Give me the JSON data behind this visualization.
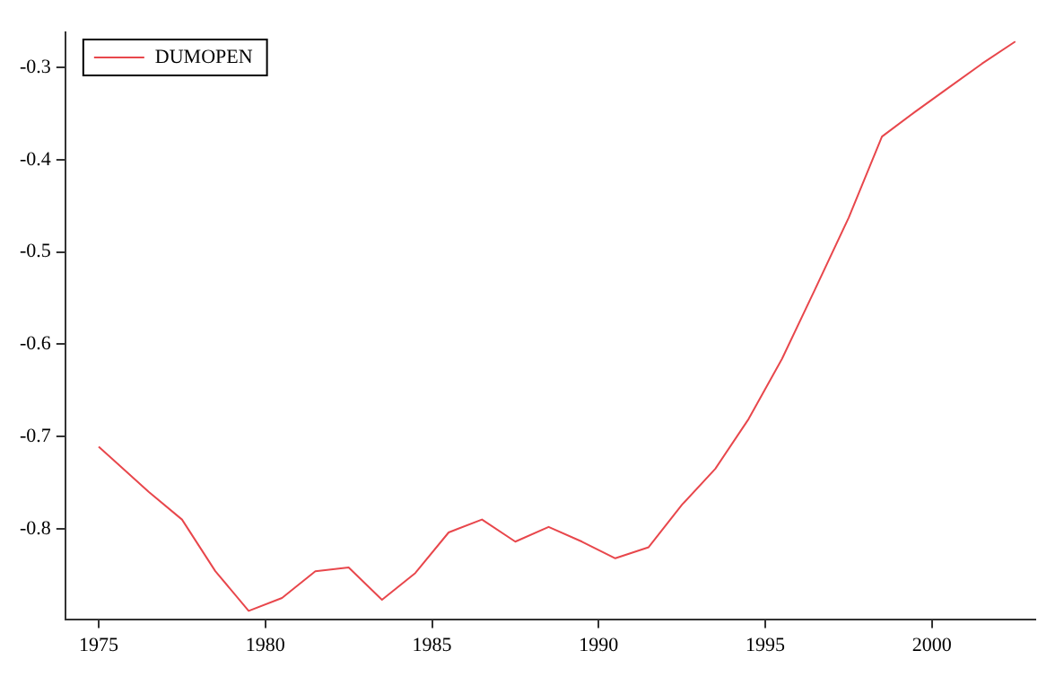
{
  "chart_data": {
    "type": "line",
    "x": [
      1975,
      1976.5,
      1977.5,
      1978.5,
      1979.5,
      1980.5,
      1981.5,
      1982.5,
      1983.5,
      1984.5,
      1985.5,
      1986.5,
      1987.5,
      1988.5,
      1989.5,
      1990.5,
      1991.5,
      1992.5,
      1993.5,
      1994.5,
      1995.5,
      1996.5,
      1997.5,
      1998.5,
      1999.5,
      2000.5,
      2001.5,
      2002.5
    ],
    "series": [
      {
        "name": "DUMOPEN",
        "color": "#e8474c",
        "values": [
          -0.711,
          -0.76,
          -0.79,
          -0.846,
          -0.889,
          -0.875,
          -0.846,
          -0.842,
          -0.877,
          -0.848,
          -0.804,
          -0.79,
          -0.814,
          -0.798,
          -0.814,
          -0.832,
          -0.82,
          -0.774,
          -0.735,
          -0.681,
          -0.616,
          -0.54,
          -0.463,
          -0.375,
          -0.348,
          -0.322,
          -0.296,
          -0.272
        ]
      }
    ],
    "xlim": [
      1974,
      2003.1
    ],
    "xticks": [
      1975,
      1980,
      1985,
      1990,
      1995,
      2000
    ],
    "ylim": [
      -0.898,
      -0.262
    ],
    "yticks": [
      -0.8,
      -0.7,
      -0.6,
      -0.5,
      -0.4,
      -0.3
    ],
    "grid": false,
    "legend": "top left",
    "marker": "none",
    "line_style": "solid"
  }
}
